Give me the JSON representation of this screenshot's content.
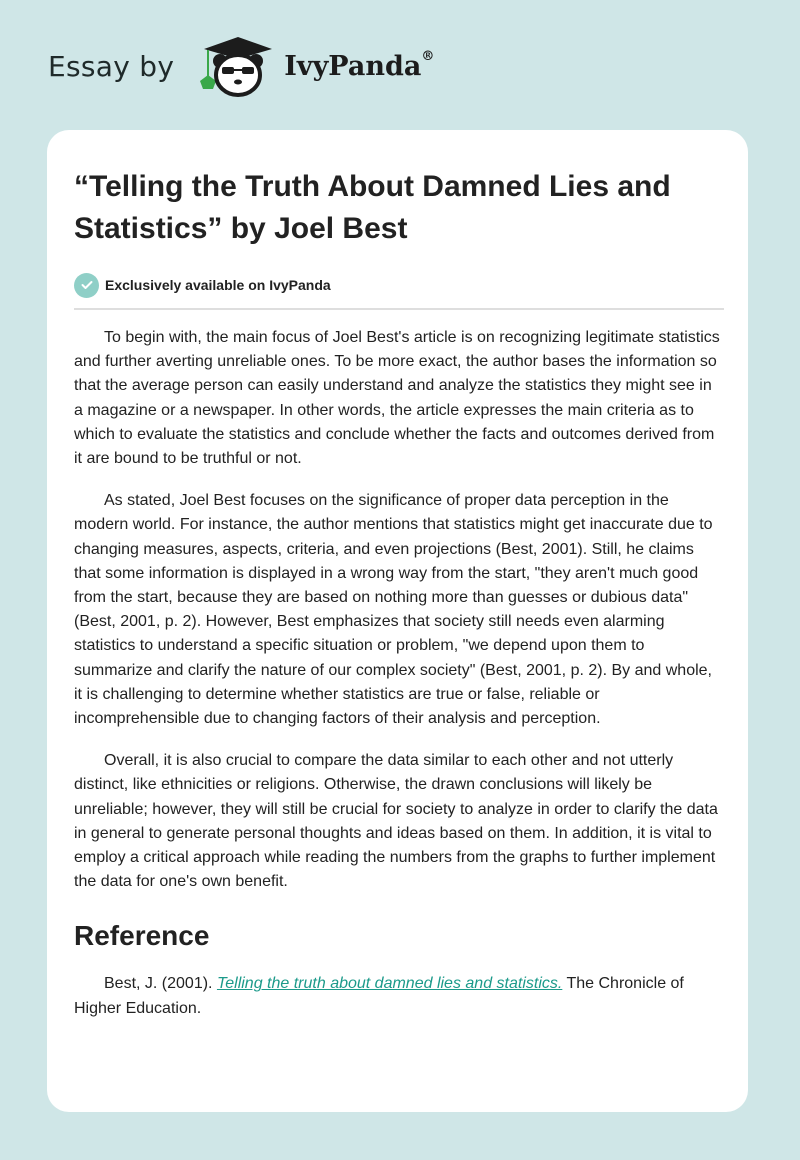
{
  "header": {
    "essay_by": "Essay by",
    "brand": "IvyPanda",
    "registered": "®"
  },
  "article": {
    "title": "“Telling the Truth About Damned Lies and Statistics” by Joel Best",
    "badge": "Exclusively available on IvyPanda",
    "paragraphs": [
      "To begin with, the main focus of Joel Best's article is on recognizing legitimate statistics and further averting unreliable ones. To be more exact, the author bases the information so that the average person can easily understand and analyze the statistics they might see in a magazine or a newspaper. In other words, the article expresses the main criteria as to which to evaluate the statistics and conclude whether the facts and outcomes derived from it are bound to be truthful or not.",
      "As stated, Joel Best focuses on the significance of proper data perception in the modern world. For instance, the author mentions that statistics might get inaccurate due to changing measures, aspects, criteria, and even projections (Best, 2001). Still, he claims that some information is displayed in a wrong way from the start, \"they aren't much good from the start, because they are based on nothing more than guesses or dubious data\" (Best, 2001, p. 2). However, Best emphasizes that society still needs even alarming statistics to understand a specific situation or problem, \"we depend upon them to summarize and clarify the nature of our complex society\" (Best, 2001, p. 2). By and whole, it is challenging to determine whether statistics are true or false, reliable or incomprehensible due to changing factors of their analysis and perception.",
      "Overall, it is also crucial to compare the data similar to each other and not utterly distinct, like ethnicities or religions. Otherwise, the drawn conclusions will likely be unreliable; however, they will still be crucial for society to analyze in order to clarify the data in general to generate personal thoughts and ideas based on them. In addition, it is vital to employ a critical approach while reading the numbers from the graphs to further implement the data for one's own benefit."
    ],
    "reference_heading": "Reference",
    "reference": {
      "prefix": "Best, J. (2001). ",
      "link_text": "Telling the truth about damned lies and statistics.",
      "suffix": " The Chronicle of Higher Education."
    }
  },
  "colors": {
    "background": "#cfe6e7",
    "accent": "#8fcfc7",
    "link": "#1c9a8a"
  },
  "icons": {
    "logo": "panda-graduate-icon",
    "badge": "check-circle-icon"
  }
}
